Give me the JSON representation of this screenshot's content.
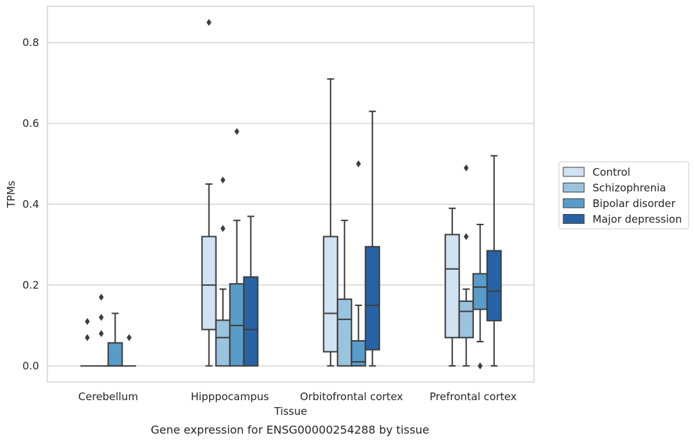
{
  "caption": "Gene expression for ENSG00000254288 by tissue",
  "chart_data": {
    "type": "box",
    "xlabel": "Tissue",
    "ylabel": "TPMs",
    "ylim": [
      -0.04,
      0.89
    ],
    "yticks": [
      0.0,
      0.2,
      0.4,
      0.6,
      0.8
    ],
    "grid": "horizontal",
    "legend_position": "right",
    "categories": [
      "Cerebellum",
      "Hipppocampus",
      "Orbitofrontal cortex",
      "Prefrontal cortex"
    ],
    "series": [
      {
        "name": "Control",
        "color": "#d1e2f2",
        "boxes": [
          {
            "min": 0,
            "q1": 0,
            "median": 0,
            "q3": 0,
            "max": 0,
            "outliers": [
              0.07,
              0.11
            ]
          },
          {
            "min": 0,
            "q1": 0.09,
            "median": 0.2,
            "q3": 0.32,
            "max": 0.45,
            "outliers": [
              0.85
            ]
          },
          {
            "min": 0,
            "q1": 0.035,
            "median": 0.13,
            "q3": 0.32,
            "max": 0.71,
            "outliers": []
          },
          {
            "min": 0,
            "q1": 0.07,
            "median": 0.24,
            "q3": 0.325,
            "max": 0.39,
            "outliers": []
          }
        ]
      },
      {
        "name": "Schizophrenia",
        "color": "#9ac3de",
        "boxes": [
          {
            "min": 0,
            "q1": 0,
            "median": 0,
            "q3": 0,
            "max": 0,
            "outliers": [
              0.08,
              0.12,
              0.17
            ]
          },
          {
            "min": 0,
            "q1": 0,
            "median": 0.07,
            "q3": 0.113,
            "max": 0.19,
            "outliers": [
              0.34,
              0.46
            ]
          },
          {
            "min": 0,
            "q1": 0,
            "median": 0.115,
            "q3": 0.165,
            "max": 0.36,
            "outliers": []
          },
          {
            "min": 0,
            "q1": 0.07,
            "median": 0.135,
            "q3": 0.16,
            "max": 0.19,
            "outliers": [
              0.32,
              0.49
            ]
          }
        ]
      },
      {
        "name": "Bipolar disorder",
        "color": "#5a9cc9",
        "boxes": [
          {
            "min": 0,
            "q1": 0,
            "median": 0,
            "q3": 0.057,
            "max": 0.13,
            "outliers": []
          },
          {
            "min": 0,
            "q1": 0,
            "median": 0.1,
            "q3": 0.203,
            "max": 0.36,
            "outliers": [
              0.58
            ]
          },
          {
            "min": 0,
            "q1": 0,
            "median": 0.01,
            "q3": 0.062,
            "max": 0.15,
            "outliers": [
              0.5
            ]
          },
          {
            "min": 0.06,
            "q1": 0.14,
            "median": 0.195,
            "q3": 0.228,
            "max": 0.35,
            "outliers": [
              0
            ]
          }
        ]
      },
      {
        "name": "Major depression",
        "color": "#2763a4",
        "boxes": [
          {
            "min": 0,
            "q1": 0,
            "median": 0,
            "q3": 0,
            "max": 0,
            "outliers": [
              0.07
            ]
          },
          {
            "min": 0,
            "q1": 0,
            "median": 0.09,
            "q3": 0.22,
            "max": 0.37,
            "outliers": []
          },
          {
            "min": 0,
            "q1": 0.04,
            "median": 0.15,
            "q3": 0.295,
            "max": 0.63,
            "outliers": []
          },
          {
            "min": 0,
            "q1": 0.112,
            "median": 0.185,
            "q3": 0.285,
            "max": 0.52,
            "outliers": []
          }
        ]
      }
    ]
  }
}
